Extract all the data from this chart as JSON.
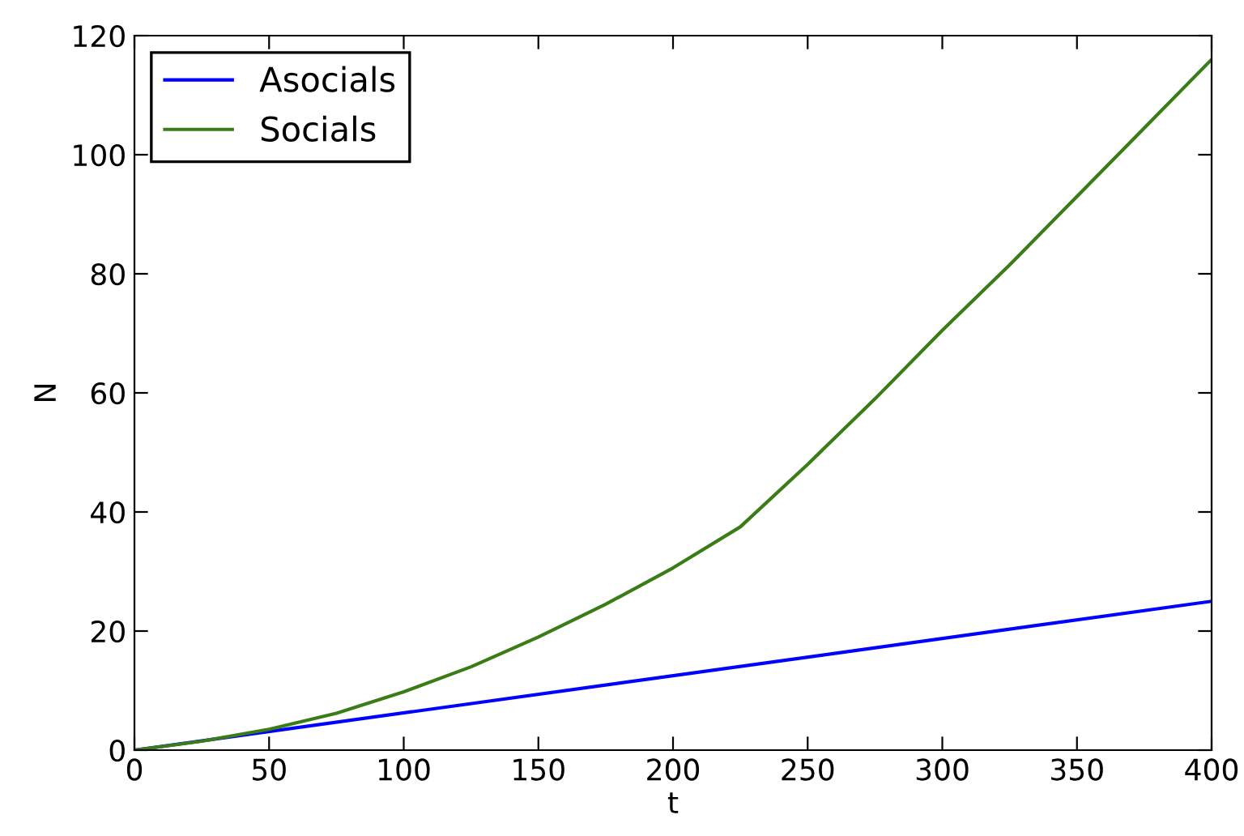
{
  "chart_data": {
    "type": "line",
    "xlabel": "t",
    "ylabel": "N",
    "xlim": [
      0,
      400
    ],
    "ylim": [
      0,
      120
    ],
    "xticks": [
      0,
      50,
      100,
      150,
      200,
      250,
      300,
      350,
      400
    ],
    "yticks": [
      0,
      20,
      40,
      60,
      80,
      100,
      120
    ],
    "grid": false,
    "legend": "top left",
    "marker": "none",
    "line_style": "solid",
    "series": [
      {
        "name": "Asocials",
        "color": "#0000ff",
        "x": [
          0,
          400
        ],
        "values": [
          0,
          25
        ]
      },
      {
        "name": "Socials",
        "color": "#3a7d16",
        "x": [
          0,
          25,
          50,
          75,
          100,
          125,
          150,
          175,
          200,
          225,
          250,
          275,
          300,
          325,
          350,
          375,
          400
        ],
        "values": [
          0,
          1.5,
          3.5,
          6.2,
          9.8,
          14,
          19,
          24.5,
          30.6,
          37.5,
          48,
          59,
          70.5,
          81.5,
          93,
          104.5,
          116
        ]
      }
    ]
  }
}
